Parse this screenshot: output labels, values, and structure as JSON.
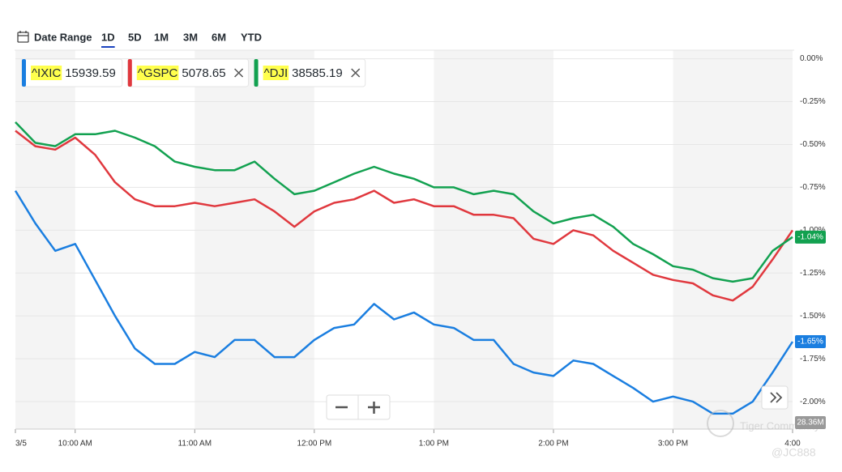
{
  "toolbar": {
    "date_range": "Date Range",
    "ranges": [
      "1D",
      "5D",
      "1M",
      "3M",
      "6M",
      "YTD"
    ],
    "selected": 0
  },
  "chart_data": {
    "type": "line",
    "x": [
      "09:30",
      "09:40",
      "09:50",
      "10:00",
      "10:10",
      "10:20",
      "10:30",
      "10:40",
      "10:50",
      "11:00",
      "11:10",
      "11:20",
      "11:30",
      "11:40",
      "11:50",
      "12:00",
      "12:10",
      "12:20",
      "12:30",
      "12:40",
      "12:50",
      "13:00",
      "13:10",
      "13:20",
      "13:30",
      "13:40",
      "13:50",
      "14:00",
      "14:10",
      "14:20",
      "14:30",
      "14:40",
      "14:50",
      "15:00",
      "15:10",
      "15:20",
      "15:30",
      "15:40",
      "15:50",
      "16:00"
    ],
    "xlim": [
      "09:30",
      "16:00"
    ],
    "xticks": [
      {
        "value": "09:30",
        "label": "3/5"
      },
      {
        "value": "10:00",
        "label": "10:00 AM"
      },
      {
        "value": "11:00",
        "label": "11:00 AM"
      },
      {
        "value": "12:00",
        "label": "12:00 PM"
      },
      {
        "value": "13:00",
        "label": "1:00 PM"
      },
      {
        "value": "14:00",
        "label": "2:00 PM"
      },
      {
        "value": "15:00",
        "label": "3:00 PM"
      },
      {
        "value": "16:00",
        "label": "4:00"
      }
    ],
    "ylim": [
      -2.16,
      0.05
    ],
    "yticks": [
      {
        "value": 0,
        "label": "0.00%"
      },
      {
        "value": -0.25,
        "label": "-0.25%"
      },
      {
        "value": -0.5,
        "label": "-0.50%"
      },
      {
        "value": -0.75,
        "label": "-0.75%"
      },
      {
        "value": -1,
        "label": "-1.00%"
      },
      {
        "value": -1.25,
        "label": "-1.25%"
      },
      {
        "value": -1.5,
        "label": "-1.50%"
      },
      {
        "value": -1.75,
        "label": "-1.75%"
      },
      {
        "value": -2,
        "label": "-2.00%"
      }
    ],
    "series": [
      {
        "name": "^IXIC",
        "price": 15939.59,
        "color": "#1a7ee0",
        "values": [
          -0.77,
          -0.96,
          -1.12,
          -1.08,
          -1.29,
          -1.5,
          -1.69,
          -1.78,
          -1.78,
          -1.71,
          -1.74,
          -1.64,
          -1.64,
          -1.74,
          -1.74,
          -1.64,
          -1.57,
          -1.55,
          -1.43,
          -1.52,
          -1.48,
          -1.55,
          -1.57,
          -1.64,
          -1.64,
          -1.78,
          -1.83,
          -1.85,
          -1.76,
          -1.78,
          -1.85,
          -1.92,
          -2.0,
          -1.97,
          -2.0,
          -2.07,
          -2.07,
          -2.0,
          -1.83,
          -1.65
        ],
        "value_labels": [
          null,
          null,
          null,
          null,
          null,
          null,
          null,
          null,
          null,
          null,
          null,
          null,
          null,
          null,
          null,
          null,
          null,
          null,
          null,
          null,
          null,
          null,
          null,
          null,
          null,
          null,
          null,
          null,
          null,
          null,
          null,
          null,
          null,
          null,
          null,
          null,
          null,
          null,
          null,
          "-1.65%"
        ]
      },
      {
        "name": "^GSPC",
        "price": 5078.65,
        "color": "#e0383e",
        "values": [
          -0.42,
          -0.51,
          -0.53,
          -0.46,
          -0.56,
          -0.72,
          -0.82,
          -0.86,
          -0.86,
          -0.84,
          -0.86,
          -0.84,
          -0.82,
          -0.89,
          -0.98,
          -0.89,
          -0.84,
          -0.82,
          -0.77,
          -0.84,
          -0.82,
          -0.86,
          -0.86,
          -0.91,
          -0.91,
          -0.93,
          -1.05,
          -1.08,
          -1.0,
          -1.03,
          -1.12,
          -1.19,
          -1.26,
          -1.29,
          -1.31,
          -1.38,
          -1.41,
          -1.33,
          -1.17,
          -1.0
        ]
      },
      {
        "name": "^DJI",
        "price": 38585.19,
        "color": "#12a150",
        "values": [
          -0.37,
          -0.49,
          -0.51,
          -0.44,
          -0.44,
          -0.42,
          -0.46,
          -0.51,
          -0.6,
          -0.63,
          -0.65,
          -0.65,
          -0.6,
          -0.7,
          -0.79,
          -0.77,
          -0.72,
          -0.67,
          -0.63,
          -0.67,
          -0.7,
          -0.75,
          -0.75,
          -0.79,
          -0.77,
          -0.79,
          -0.89,
          -0.96,
          -0.93,
          -0.91,
          -0.98,
          -1.08,
          -1.14,
          -1.21,
          -1.23,
          -1.28,
          -1.3,
          -1.28,
          -1.12,
          -1.04
        ],
        "value_labels": [
          null,
          null,
          null,
          null,
          null,
          null,
          null,
          null,
          null,
          null,
          null,
          null,
          null,
          null,
          null,
          null,
          null,
          null,
          null,
          null,
          null,
          null,
          null,
          null,
          null,
          null,
          null,
          null,
          null,
          null,
          null,
          null,
          null,
          null,
          null,
          null,
          null,
          null,
          null,
          "-1.04%"
        ]
      }
    ],
    "volume_label": "28.36M"
  },
  "watermark": {
    "brand": "Tiger Community",
    "handle": "@JC888"
  }
}
